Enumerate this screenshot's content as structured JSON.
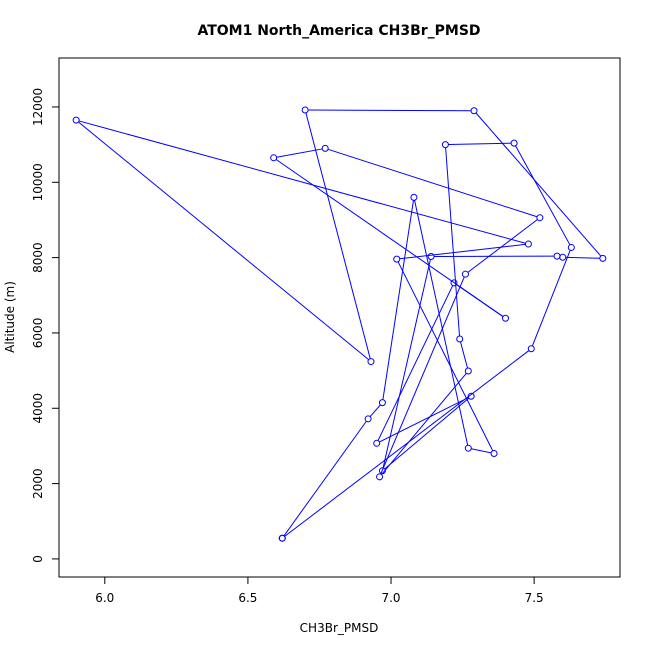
{
  "chart_data": {
    "type": "line",
    "title": "ATOM1 North_America CH3Br_PMSD",
    "xlabel": "CH3Br_PMSD",
    "ylabel": "Altitude (m)",
    "xlim": [
      5.84,
      7.8
    ],
    "ylim": [
      -480,
      13300
    ],
    "x_ticks": [
      6.0,
      6.5,
      7.0,
      7.5
    ],
    "x_tick_labels": [
      "6.0",
      "6.5",
      "7.0",
      "7.5"
    ],
    "y_ticks": [
      0,
      2000,
      4000,
      6000,
      8000,
      10000,
      12000
    ],
    "y_tick_labels": [
      "0",
      "2000",
      "4000",
      "6000",
      "8000",
      "10000",
      "12000"
    ],
    "grid": false,
    "legend": "none",
    "series_color": "#0000ff",
    "markers": "open-circle",
    "points": [
      {
        "x": 6.62,
        "y": 550
      },
      {
        "x": 7.49,
        "y": 5580
      },
      {
        "x": 7.63,
        "y": 8270
      },
      {
        "x": 7.43,
        "y": 11040
      },
      {
        "x": 7.19,
        "y": 11000
      },
      {
        "x": 7.24,
        "y": 5840
      },
      {
        "x": 7.27,
        "y": 4990
      },
      {
        "x": 6.96,
        "y": 2180
      },
      {
        "x": 7.26,
        "y": 7560
      },
      {
        "x": 7.52,
        "y": 9060
      },
      {
        "x": 6.77,
        "y": 10900
      },
      {
        "x": 6.59,
        "y": 10650
      },
      {
        "x": 7.4,
        "y": 6390
      },
      {
        "x": 7.22,
        "y": 7330
      },
      {
        "x": 6.95,
        "y": 3070
      },
      {
        "x": 7.28,
        "y": 4320
      },
      {
        "x": 6.97,
        "y": 2340
      },
      {
        "x": 7.14,
        "y": 8030
      },
      {
        "x": 7.58,
        "y": 8040
      },
      {
        "x": 7.6,
        "y": 8010
      },
      {
        "x": 7.74,
        "y": 7980
      },
      {
        "x": 7.29,
        "y": 11900
      },
      {
        "x": 6.7,
        "y": 11920
      },
      {
        "x": 6.93,
        "y": 5240
      },
      {
        "x": 5.9,
        "y": 11650
      },
      {
        "x": 7.48,
        "y": 8360
      },
      {
        "x": 7.02,
        "y": 7960
      },
      {
        "x": 7.36,
        "y": 2800
      },
      {
        "x": 7.27,
        "y": 2940
      },
      {
        "x": 7.08,
        "y": 9600
      },
      {
        "x": 6.97,
        "y": 4150
      },
      {
        "x": 6.92,
        "y": 3720
      },
      {
        "x": 6.62,
        "y": 550
      }
    ]
  }
}
